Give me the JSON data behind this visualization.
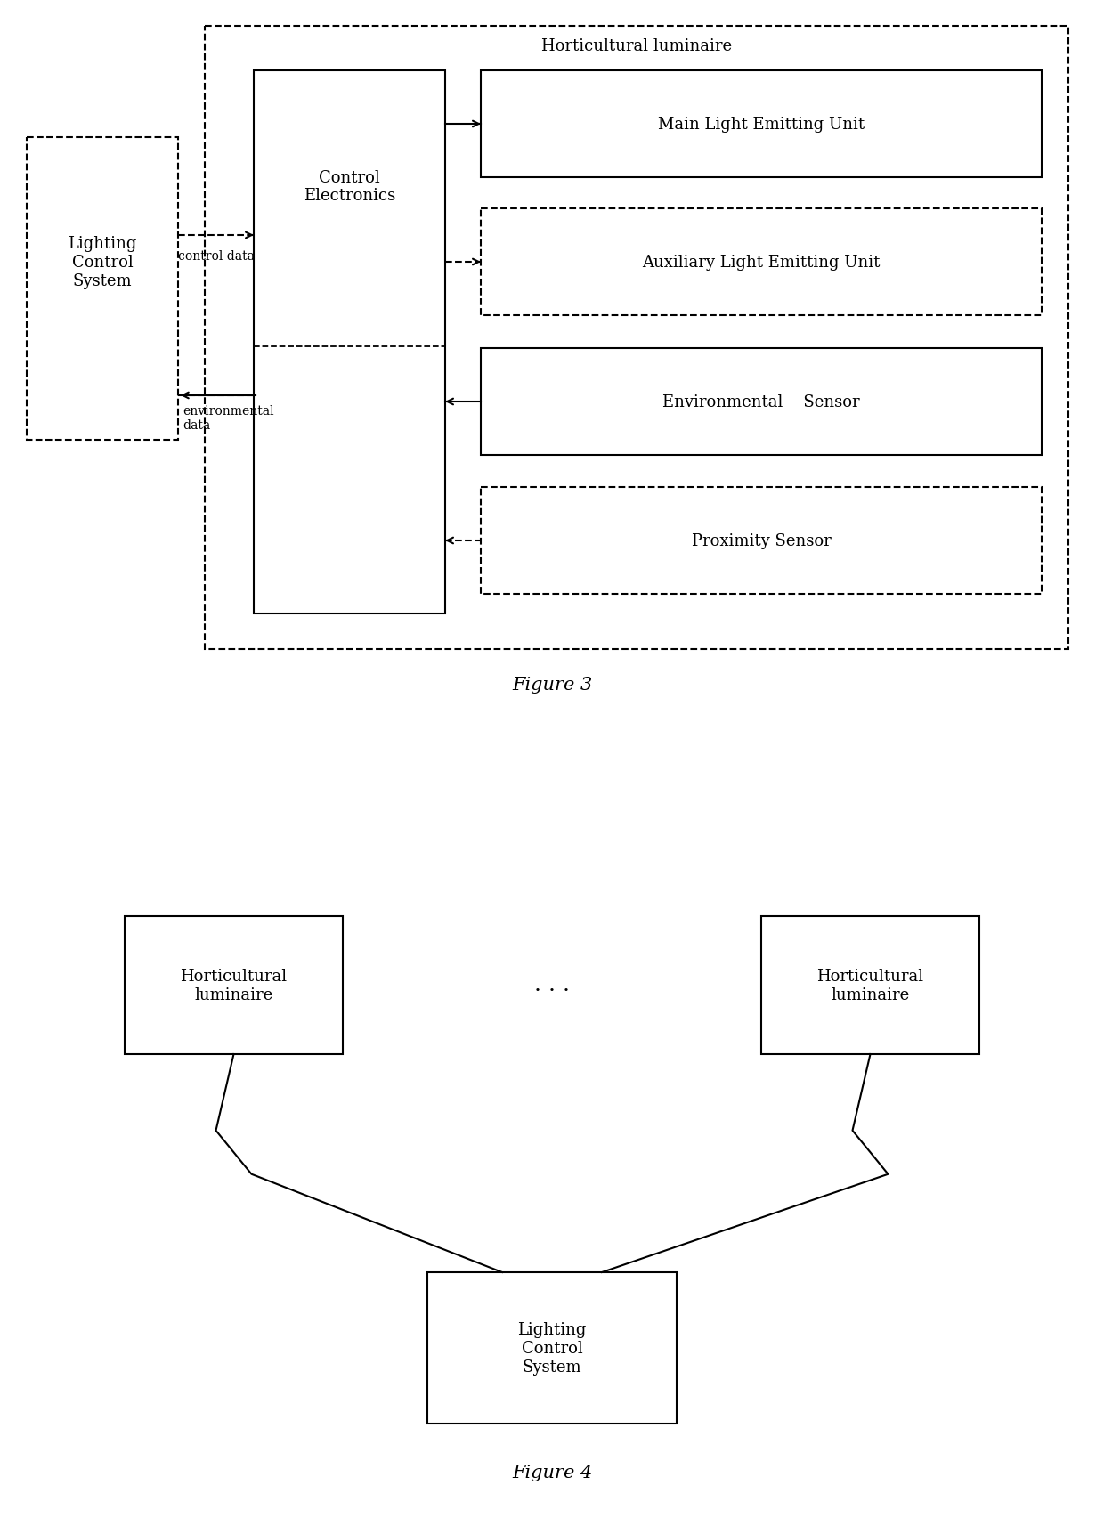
{
  "bg_color": "#ffffff",
  "fig3": {
    "title": "Figure 3",
    "hort_luminaire_label": "Horticultural luminaire",
    "control_label": "Control\nElectronics",
    "lcs_label": "Lighting\nControl\nSystem",
    "main_label": "Main Light Emitting Unit",
    "aux_label": "Auxiliary Light Emitting Unit",
    "env_label": "Environmental    Sensor",
    "prox_label": "Proximity Sensor",
    "control_data_label": "control data",
    "env_data_label": "environmental\ndata"
  },
  "fig4": {
    "title": "Figure 4",
    "hort1_label": "Horticultural\nluminaire",
    "hort2_label": "Horticultural\nluminaire",
    "lcs_label": "Lighting\nControl\nSystem",
    "dots_label": ". . ."
  }
}
